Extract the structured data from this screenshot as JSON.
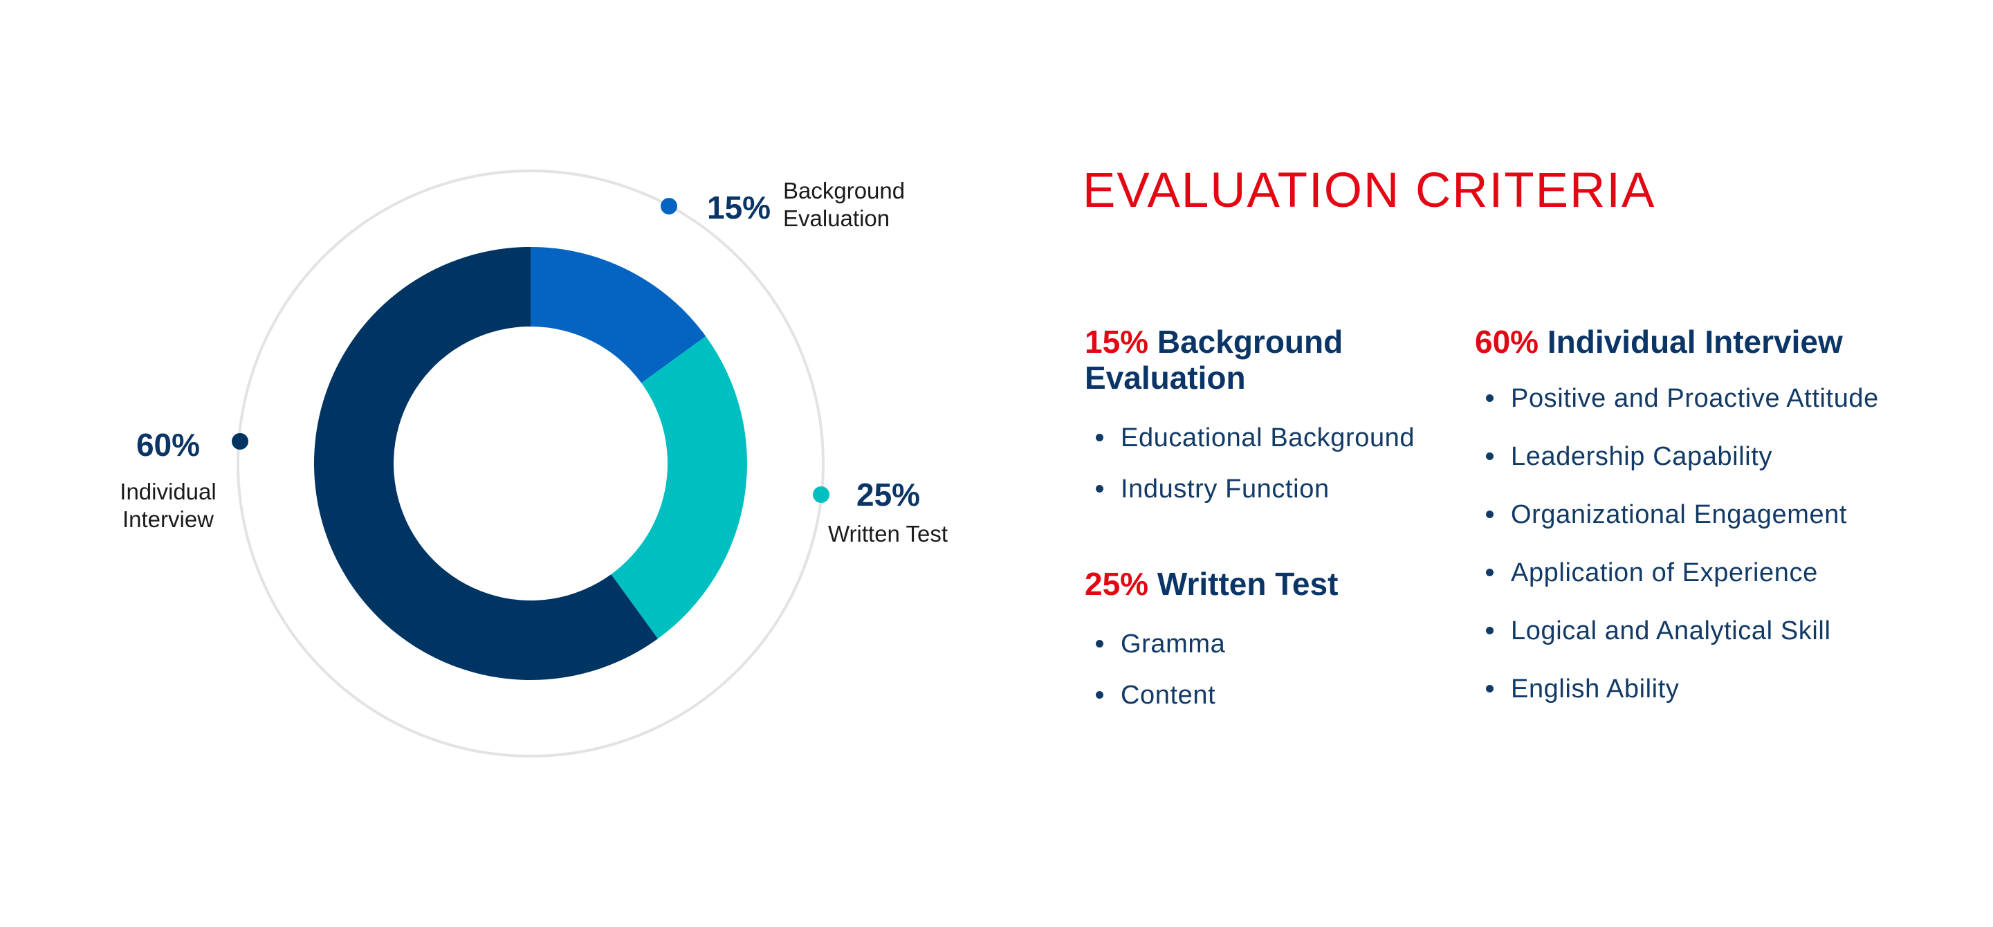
{
  "chart_data": {
    "type": "pie",
    "categories": [
      "Background Evaluation",
      "Written Test",
      "Individual Interview"
    ],
    "values": [
      15,
      25,
      60
    ],
    "value_labels": [
      "15%",
      "25%",
      "60%"
    ],
    "callout_labels": [
      [
        "Background",
        "Evaluation"
      ],
      [
        "Written Test"
      ],
      [
        "Individual",
        "Interview"
      ]
    ],
    "colors": [
      "#0563c1",
      "#00bfc0",
      "#003463"
    ],
    "style": "donut"
  },
  "title": "EVALUATION CRITERIA",
  "sections": {
    "background": {
      "pct": "15%",
      "name_line1": "Background",
      "name_line2": "Evaluation",
      "items": [
        "Educational Background",
        "Industry Function"
      ]
    },
    "written": {
      "pct": "25%",
      "name": "Written Test",
      "items": [
        "Gramma",
        "Content"
      ]
    },
    "interview": {
      "pct": "60%",
      "name": "Individual Interview",
      "items": [
        "Positive and Proactive Attitude",
        "Leadership Capability",
        "Organizational Engagement",
        "Application of Experience",
        "Logical and Analytical Skill",
        "English Ability"
      ]
    }
  }
}
